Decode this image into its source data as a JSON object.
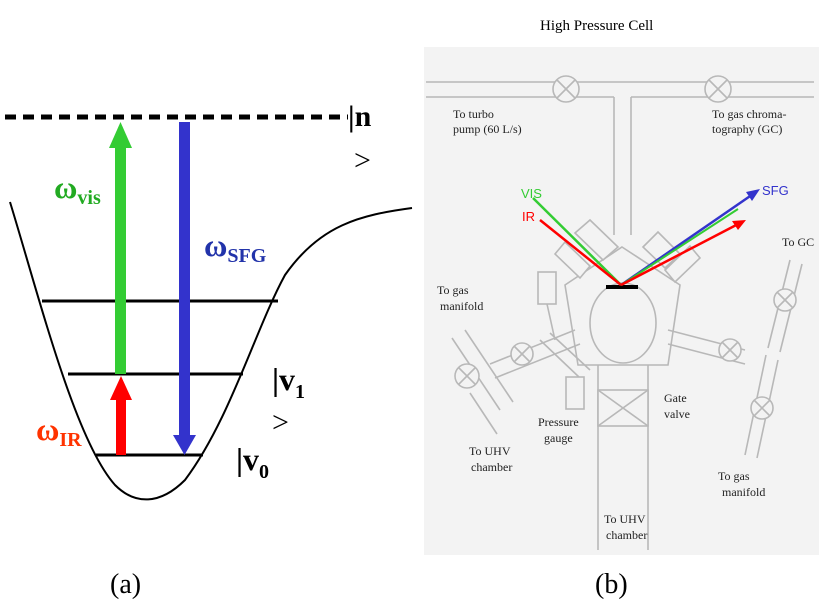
{
  "panel_a": {
    "caption": "(a)",
    "state_n": "|n",
    "state_n_close": ">",
    "state_v1": "|v",
    "state_v1_sub": "1",
    "state_v1_close": ">",
    "state_v0": "|v",
    "state_v0_sub": "0",
    "omega": "ω",
    "omega_vis_sub": "vis",
    "omega_sfg_sub": "SFG",
    "omega_ir_sub": "IR",
    "colors": {
      "vis": "#33cc33",
      "sfg": "#3333cc",
      "ir": "#ff0000",
      "ir_label": "#ff3300",
      "vis_label": "#22aa22",
      "sfg_label": "#2233aa"
    }
  },
  "panel_b": {
    "caption": "(b)",
    "title": "High Pressure Cell",
    "turbo_l1": "To turbo",
    "turbo_l2": "pump (60 L/s)",
    "gc_l1": "To gas chroma-",
    "gc_l2": "tography (GC)",
    "vis": "VIS",
    "ir": "IR",
    "sfg": "SFG",
    "to_gc": "To GC",
    "manifold_l1": "To gas",
    "manifold_l2": "manifold",
    "pressure_l1": "Pressure",
    "pressure_l2": "gauge",
    "gate_l1": "Gate",
    "gate_l2": "valve",
    "uhv_left_l1": "To UHV",
    "uhv_left_l2": "chamber",
    "uhv_bottom_l1": "To UHV",
    "uhv_bottom_l2": "chamber",
    "manifold_right_l1": "To gas",
    "manifold_right_l2": "manifold"
  }
}
